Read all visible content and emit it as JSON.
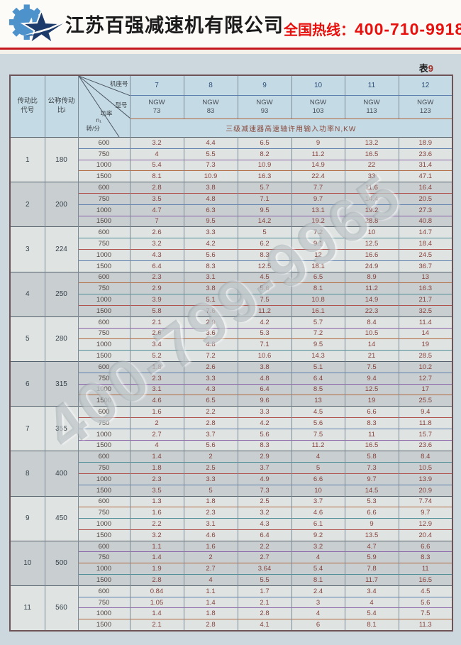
{
  "header": {
    "company": "江苏百强减速机有限公司",
    "hotline_label": "全国热线：",
    "hotline_number": "400-710-9918"
  },
  "colors": {
    "hotline_red": "#e8100d",
    "banner_rule_red": "#c4161c",
    "header_cell_blue": "#c4dae5",
    "row_light": "#dfe3e2",
    "row_dark": "#c9ced1",
    "value_text": "#86423b",
    "page_bg": "#cdd8de"
  },
  "table_label": {
    "prefix": "表",
    "number": "9"
  },
  "watermark": "400-799-9965",
  "table": {
    "row_headers": {
      "col1": [
        "传动比",
        "代号"
      ],
      "col2": [
        "公称传动",
        "比i"
      ]
    },
    "diag": {
      "frame": "机座号",
      "model": "型号",
      "power": "功率",
      "n1": "n₁",
      "unit": "转/分"
    },
    "frames": [
      "7",
      "8",
      "9",
      "10",
      "11",
      "12"
    ],
    "models": [
      [
        "NGW",
        "73"
      ],
      [
        "NGW",
        "83"
      ],
      [
        "NGW",
        "93"
      ],
      [
        "NGW",
        "103"
      ],
      [
        "NGW",
        "113"
      ],
      [
        "NGW",
        "123"
      ]
    ],
    "span_header": "三级减速器高速轴许用输入功率N,KW",
    "groups": [
      {
        "code": "1",
        "ratio": "180",
        "rows": [
          {
            "speed": "600",
            "values": [
              "3.2",
              "4.4",
              "6.5",
              "9",
              "13.2",
              "18.9"
            ]
          },
          {
            "speed": "750",
            "values": [
              "4",
              "5.5",
              "8.2",
              "11.2",
              "16.5",
              "23.6"
            ]
          },
          {
            "speed": "1000",
            "values": [
              "5.4",
              "7.3",
              "10.9",
              "14.9",
              "22",
              "31.4"
            ]
          },
          {
            "speed": "1500",
            "values": [
              "8.1",
              "10.9",
              "16.3",
              "22.4",
              "33",
              "47.1"
            ]
          }
        ]
      },
      {
        "code": "2",
        "ratio": "200",
        "rows": [
          {
            "speed": "600",
            "values": [
              "2.8",
              "3.8",
              "5.7",
              "7.7",
              "11.6",
              "16.4"
            ]
          },
          {
            "speed": "750",
            "values": [
              "3.5",
              "4.8",
              "7.1",
              "9.7",
              "14.4",
              "20.5"
            ]
          },
          {
            "speed": "1000",
            "values": [
              "4.7",
              "6.3",
              "9.5",
              "13.1",
              "19.2",
              "27.3"
            ]
          },
          {
            "speed": "1500",
            "values": [
              "7",
              "9.5",
              "14.2",
              "19.2",
              "28.8",
              "40.8"
            ]
          }
        ]
      },
      {
        "code": "3",
        "ratio": "224",
        "rows": [
          {
            "speed": "600",
            "values": [
              "2.6",
              "3.3",
              "5",
              "7.2",
              "10",
              "14.7"
            ]
          },
          {
            "speed": "750",
            "values": [
              "3.2",
              "4.2",
              "6.2",
              "9.1",
              "12.5",
              "18.4"
            ]
          },
          {
            "speed": "1000",
            "values": [
              "4.3",
              "5.6",
              "8.3",
              "12",
              "16.6",
              "24.5"
            ]
          },
          {
            "speed": "1500",
            "values": [
              "6.4",
              "8.3",
              "12.5",
              "18.1",
              "24.9",
              "36.7"
            ]
          }
        ]
      },
      {
        "code": "4",
        "ratio": "250",
        "rows": [
          {
            "speed": "600",
            "values": [
              "2.3",
              "3.1",
              "4.5",
              "6.5",
              "8.9",
              "13"
            ]
          },
          {
            "speed": "750",
            "values": [
              "2.9",
              "3.8",
              "5.6",
              "8.1",
              "11.2",
              "16.3"
            ]
          },
          {
            "speed": "1000",
            "values": [
              "3.9",
              "5.1",
              "7.5",
              "10.8",
              "14.9",
              "21.7"
            ]
          },
          {
            "speed": "1500",
            "values": [
              "5.8",
              "7.6",
              "11.2",
              "16.1",
              "22.3",
              "32.5"
            ]
          }
        ]
      },
      {
        "code": "5",
        "ratio": "280",
        "rows": [
          {
            "speed": "600",
            "values": [
              "2.1",
              "2.9",
              "4.2",
              "5.7",
              "8.4",
              "11.4"
            ]
          },
          {
            "speed": "750",
            "values": [
              "2.6",
              "3.6",
              "5.3",
              "7.2",
              "10.5",
              "14"
            ]
          },
          {
            "speed": "1000",
            "values": [
              "3.4",
              "4.8",
              "7.1",
              "9.5",
              "14",
              "19"
            ]
          },
          {
            "speed": "1500",
            "values": [
              "5.2",
              "7.2",
              "10.6",
              "14.3",
              "21",
              "28.5"
            ]
          }
        ]
      },
      {
        "code": "6",
        "ratio": "315",
        "rows": [
          {
            "speed": "600",
            "values": [
              "1.8",
              "2.6",
              "3.8",
              "5.1",
              "7.5",
              "10.2"
            ]
          },
          {
            "speed": "750",
            "values": [
              "2.3",
              "3.3",
              "4.8",
              "6.4",
              "9.4",
              "12.7"
            ]
          },
          {
            "speed": "1000",
            "values": [
              "3.1",
              "4.3",
              "6.4",
              "8.5",
              "12.5",
              "17"
            ]
          },
          {
            "speed": "1500",
            "values": [
              "4.6",
              "6.5",
              "9.6",
              "13",
              "19",
              "25.5"
            ]
          }
        ]
      },
      {
        "code": "7",
        "ratio": "355",
        "rows": [
          {
            "speed": "600",
            "values": [
              "1.6",
              "2.2",
              "3.3",
              "4.5",
              "6.6",
              "9.4"
            ]
          },
          {
            "speed": "750",
            "values": [
              "2",
              "2.8",
              "4.2",
              "5.6",
              "8.3",
              "11.8"
            ]
          },
          {
            "speed": "1000",
            "values": [
              "2.7",
              "3.7",
              "5.6",
              "7.5",
              "11",
              "15.7"
            ]
          },
          {
            "speed": "1500",
            "values": [
              "4",
              "5.6",
              "8.3",
              "11.2",
              "16.5",
              "23.6"
            ]
          }
        ]
      },
      {
        "code": "8",
        "ratio": "400",
        "rows": [
          {
            "speed": "600",
            "values": [
              "1.4",
              "2",
              "2.9",
              "4",
              "5.8",
              "8.4"
            ]
          },
          {
            "speed": "750",
            "values": [
              "1.8",
              "2.5",
              "3.7",
              "5",
              "7.3",
              "10.5"
            ]
          },
          {
            "speed": "1000",
            "values": [
              "2.3",
              "3.3",
              "4.9",
              "6.6",
              "9.7",
              "13.9"
            ]
          },
          {
            "speed": "1500",
            "values": [
              "3.5",
              "5",
              "7.3",
              "10",
              "14.5",
              "20.9"
            ]
          }
        ]
      },
      {
        "code": "9",
        "ratio": "450",
        "rows": [
          {
            "speed": "600",
            "values": [
              "1.3",
              "1.8",
              "2.5",
              "3.7",
              "5.3",
              "7.74"
            ]
          },
          {
            "speed": "750",
            "values": [
              "1.6",
              "2.3",
              "3.2",
              "4.6",
              "6.6",
              "9.7"
            ]
          },
          {
            "speed": "1000",
            "values": [
              "2.2",
              "3.1",
              "4.3",
              "6.1",
              "9",
              "12.9"
            ]
          },
          {
            "speed": "1500",
            "values": [
              "3.2",
              "4.6",
              "6.4",
              "9.2",
              "13.5",
              "20.4"
            ]
          }
        ]
      },
      {
        "code": "10",
        "ratio": "500",
        "rows": [
          {
            "speed": "600",
            "values": [
              "1.1",
              "1.6",
              "2.2",
              "3.2",
              "4.7",
              "6.6"
            ]
          },
          {
            "speed": "750",
            "values": [
              "1.4",
              "2",
              "2.7",
              "4",
              "5.9",
              "8.3"
            ]
          },
          {
            "speed": "1000",
            "values": [
              "1.9",
              "2.7",
              "3.64",
              "5.4",
              "7.8",
              "11"
            ]
          },
          {
            "speed": "1500",
            "values": [
              "2.8",
              "4",
              "5.5",
              "8.1",
              "11.7",
              "16.5"
            ]
          }
        ]
      },
      {
        "code": "11",
        "ratio": "560",
        "rows": [
          {
            "speed": "600",
            "values": [
              "0.84",
              "1.1",
              "1.7",
              "2.4",
              "3.4",
              "4.5"
            ]
          },
          {
            "speed": "750",
            "values": [
              "1.05",
              "1.4",
              "2.1",
              "3",
              "4",
              "5.6"
            ]
          },
          {
            "speed": "1000",
            "values": [
              "1.4",
              "1.8",
              "2.8",
              "4",
              "5.4",
              "7.5"
            ]
          },
          {
            "speed": "1500",
            "values": [
              "2.1",
              "2.8",
              "4.1",
              "6",
              "8.1",
              "11.3"
            ]
          }
        ]
      }
    ]
  }
}
